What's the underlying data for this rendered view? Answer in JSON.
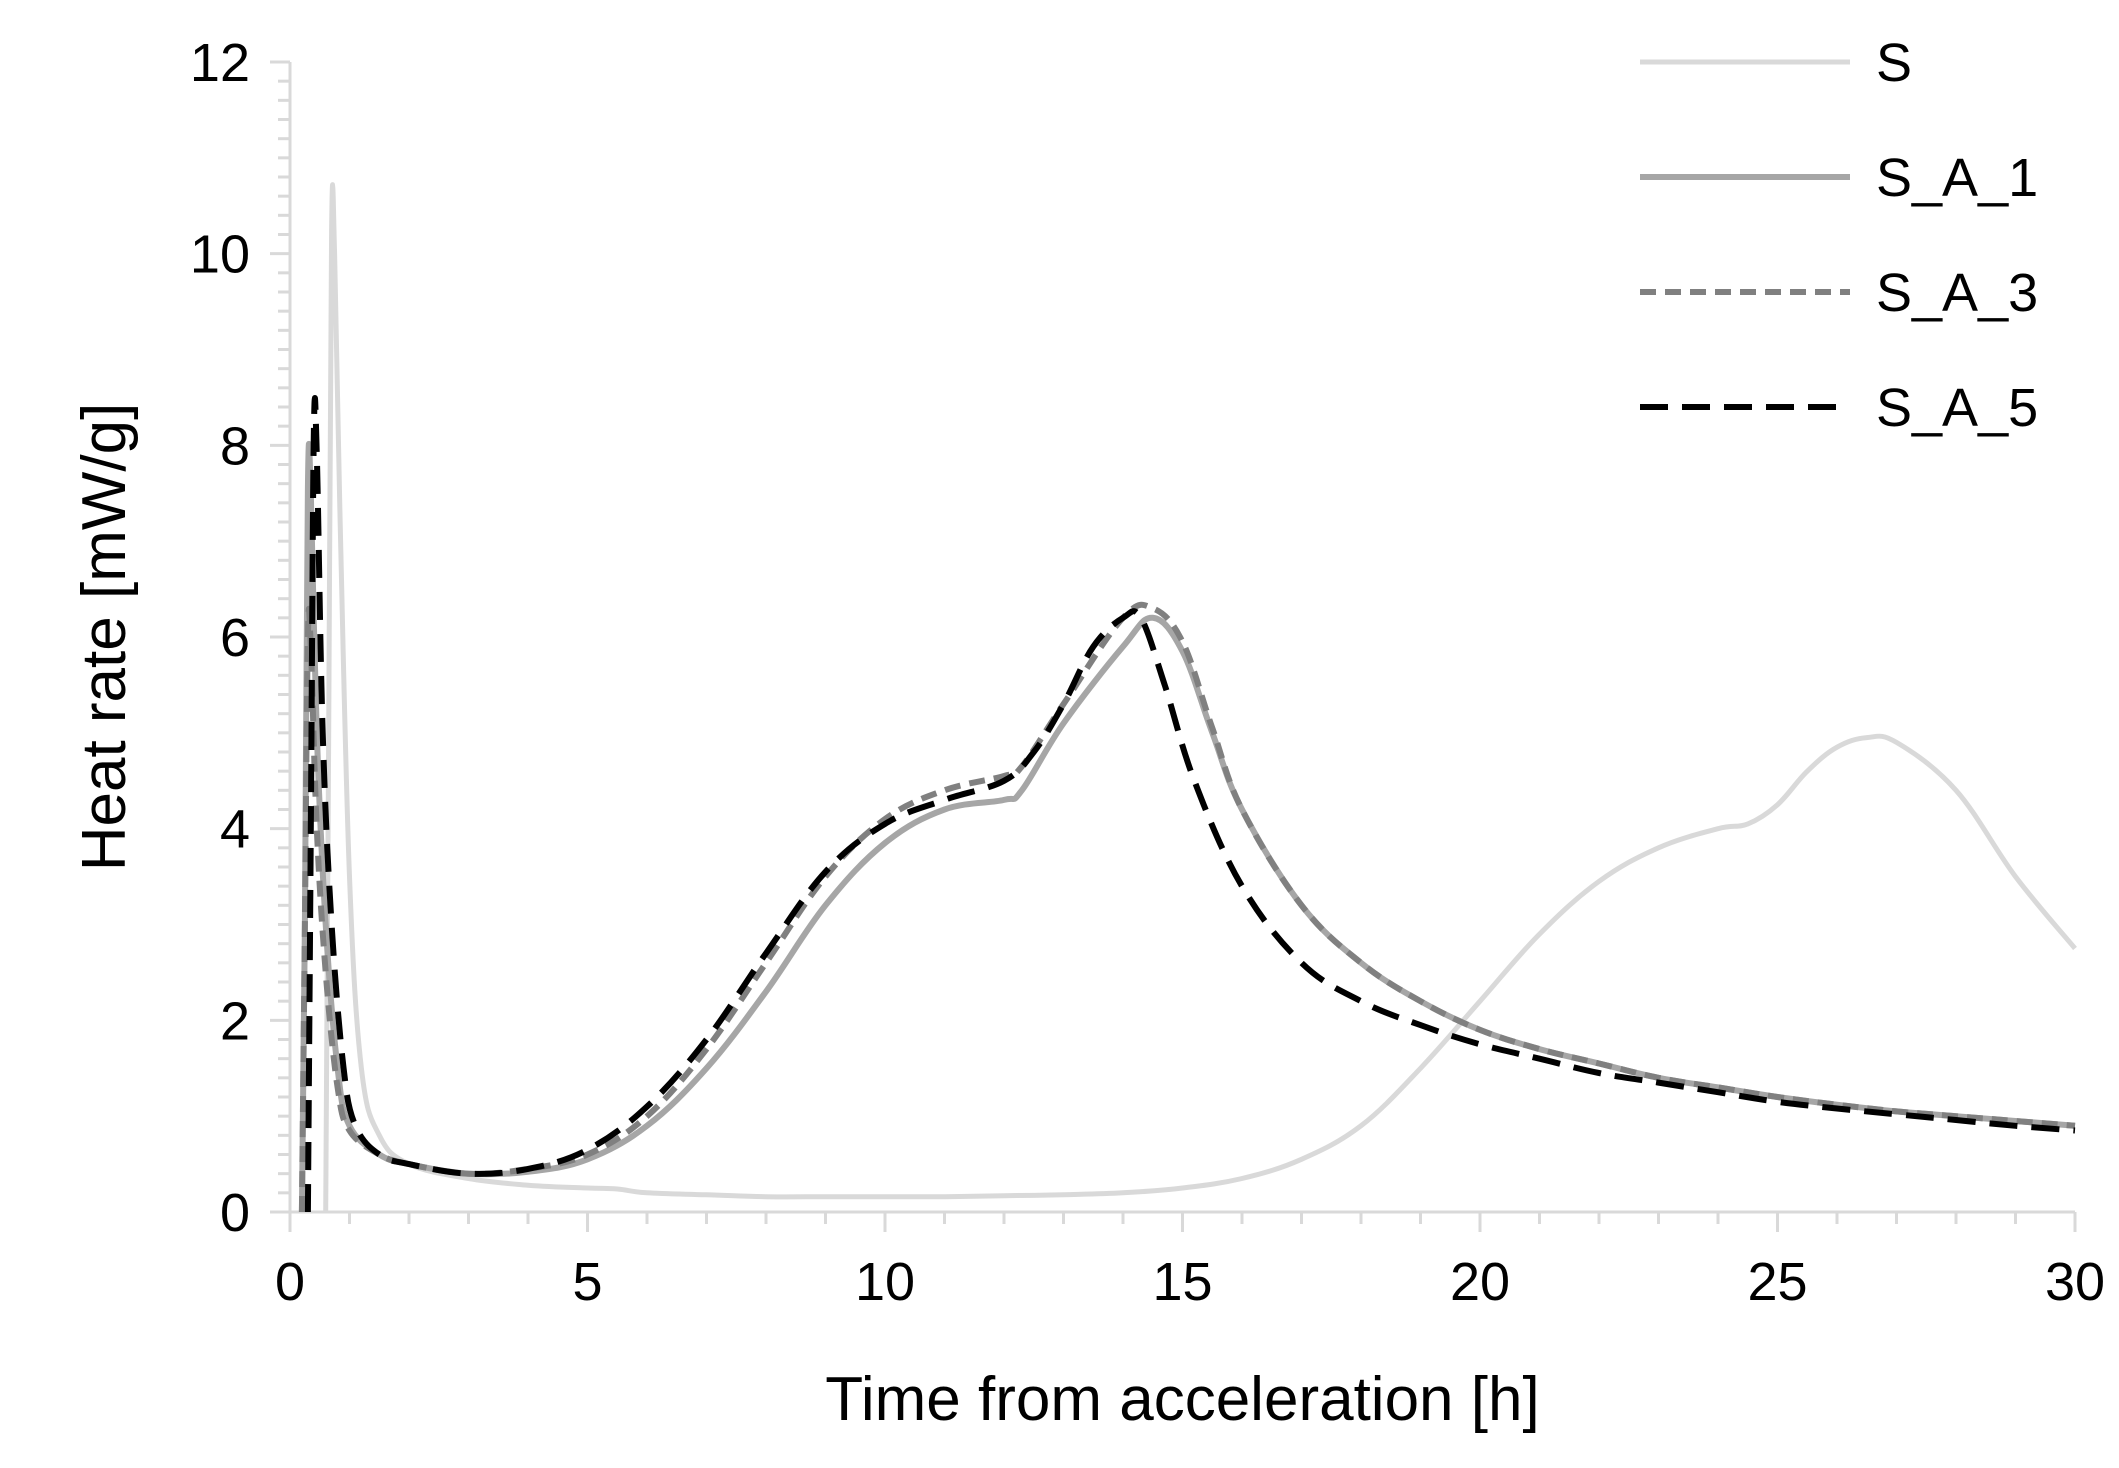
{
  "chart_data": {
    "type": "line",
    "title": "",
    "xlabel": "Time from acceleration [h]",
    "ylabel": "Heat rate [mW/g]",
    "xlim": [
      0,
      30
    ],
    "ylim": [
      0,
      12
    ],
    "xticks": [
      0,
      5,
      10,
      15,
      20,
      25,
      30
    ],
    "xtick_labels": [
      "0",
      "5",
      "10",
      "15",
      "20",
      "25",
      "30"
    ],
    "yticks": [
      0,
      2,
      4,
      6,
      8,
      10,
      12
    ],
    "ytick_labels": [
      "0",
      "2",
      "4",
      "6",
      "8",
      "10",
      "12"
    ],
    "x_minor_step": 1,
    "y_minor_step": 0.2,
    "grid": false,
    "legend_position": "top-right",
    "series": [
      {
        "name": "S",
        "color": "#d9d9d9",
        "dash": "solid",
        "points": [
          [
            0.6,
            0
          ],
          [
            0.65,
            5
          ],
          [
            0.7,
            10.25
          ],
          [
            0.75,
            10
          ],
          [
            0.85,
            7
          ],
          [
            1.0,
            3.5
          ],
          [
            1.2,
            1.5
          ],
          [
            1.5,
            0.8
          ],
          [
            2,
            0.5
          ],
          [
            3,
            0.35
          ],
          [
            4,
            0.28
          ],
          [
            5,
            0.25
          ],
          [
            5.5,
            0.24
          ],
          [
            6,
            0.2
          ],
          [
            7,
            0.18
          ],
          [
            8,
            0.16
          ],
          [
            9,
            0.16
          ],
          [
            10,
            0.16
          ],
          [
            11,
            0.16
          ],
          [
            12,
            0.17
          ],
          [
            13,
            0.18
          ],
          [
            14,
            0.2
          ],
          [
            15,
            0.25
          ],
          [
            16,
            0.35
          ],
          [
            17,
            0.55
          ],
          [
            18,
            0.9
          ],
          [
            19,
            1.5
          ],
          [
            20,
            2.2
          ],
          [
            21,
            2.9
          ],
          [
            22,
            3.45
          ],
          [
            23,
            3.8
          ],
          [
            24,
            4.0
          ],
          [
            24.5,
            4.05
          ],
          [
            25,
            4.25
          ],
          [
            25.5,
            4.6
          ],
          [
            26,
            4.85
          ],
          [
            26.5,
            4.95
          ],
          [
            27,
            4.9
          ],
          [
            28,
            4.4
          ],
          [
            29,
            3.5
          ],
          [
            30,
            2.75
          ]
        ]
      },
      {
        "name": "S_A_1",
        "color": "#a6a6a6",
        "dash": "solid",
        "points": [
          [
            0.2,
            0
          ],
          [
            0.25,
            3
          ],
          [
            0.3,
            7.55
          ],
          [
            0.35,
            7.5
          ],
          [
            0.45,
            5
          ],
          [
            0.6,
            3
          ],
          [
            0.8,
            1.5
          ],
          [
            1,
            0.9
          ],
          [
            1.5,
            0.6
          ],
          [
            2,
            0.5
          ],
          [
            3,
            0.4
          ],
          [
            4,
            0.42
          ],
          [
            5,
            0.55
          ],
          [
            6,
            0.9
          ],
          [
            7,
            1.5
          ],
          [
            8,
            2.3
          ],
          [
            9,
            3.2
          ],
          [
            10,
            3.85
          ],
          [
            11,
            4.2
          ],
          [
            12,
            4.3
          ],
          [
            12.3,
            4.4
          ],
          [
            13,
            5.1
          ],
          [
            14,
            5.9
          ],
          [
            14.5,
            6.2
          ],
          [
            15,
            5.85
          ],
          [
            15.5,
            5.0
          ],
          [
            16,
            4.2
          ],
          [
            17,
            3.2
          ],
          [
            18,
            2.6
          ],
          [
            19,
            2.2
          ],
          [
            20,
            1.9
          ],
          [
            21,
            1.7
          ],
          [
            22,
            1.55
          ],
          [
            23,
            1.4
          ],
          [
            24,
            1.3
          ],
          [
            25,
            1.2
          ],
          [
            26,
            1.12
          ],
          [
            27,
            1.05
          ],
          [
            28,
            1.0
          ],
          [
            29,
            0.95
          ],
          [
            30,
            0.9
          ]
        ]
      },
      {
        "name": "S_A_3",
        "color": "#808080",
        "dash": "short",
        "points": [
          [
            0.2,
            0
          ],
          [
            0.25,
            3
          ],
          [
            0.3,
            6.0
          ],
          [
            0.35,
            5.9
          ],
          [
            0.45,
            4.0
          ],
          [
            0.6,
            2.5
          ],
          [
            0.8,
            1.3
          ],
          [
            1,
            0.85
          ],
          [
            1.5,
            0.6
          ],
          [
            2,
            0.5
          ],
          [
            3,
            0.4
          ],
          [
            4,
            0.45
          ],
          [
            5,
            0.6
          ],
          [
            6,
            1.0
          ],
          [
            7,
            1.7
          ],
          [
            8,
            2.6
          ],
          [
            9,
            3.5
          ],
          [
            10,
            4.1
          ],
          [
            11,
            4.4
          ],
          [
            12,
            4.55
          ],
          [
            12.3,
            4.65
          ],
          [
            13,
            5.3
          ],
          [
            14,
            6.2
          ],
          [
            14.5,
            6.3
          ],
          [
            15,
            5.95
          ],
          [
            15.5,
            5.05
          ],
          [
            16,
            4.2
          ],
          [
            17,
            3.2
          ],
          [
            18,
            2.6
          ],
          [
            19,
            2.2
          ],
          [
            20,
            1.9
          ],
          [
            21,
            1.7
          ],
          [
            22,
            1.55
          ],
          [
            23,
            1.4
          ],
          [
            24,
            1.3
          ],
          [
            25,
            1.2
          ],
          [
            26,
            1.12
          ],
          [
            27,
            1.05
          ],
          [
            28,
            1.0
          ],
          [
            29,
            0.95
          ],
          [
            30,
            0.9
          ]
        ]
      },
      {
        "name": "S_A_5",
        "color": "#000000",
        "dash": "long",
        "points": [
          [
            0.3,
            0
          ],
          [
            0.35,
            4
          ],
          [
            0.4,
            8.1
          ],
          [
            0.45,
            7.9
          ],
          [
            0.55,
            5
          ],
          [
            0.7,
            3
          ],
          [
            0.9,
            1.5
          ],
          [
            1.1,
            0.9
          ],
          [
            1.5,
            0.6
          ],
          [
            2,
            0.5
          ],
          [
            3,
            0.4
          ],
          [
            4,
            0.45
          ],
          [
            5,
            0.65
          ],
          [
            6,
            1.1
          ],
          [
            7,
            1.8
          ],
          [
            8,
            2.7
          ],
          [
            9,
            3.55
          ],
          [
            10,
            4.05
          ],
          [
            11,
            4.3
          ],
          [
            12,
            4.5
          ],
          [
            12.5,
            4.8
          ],
          [
            13,
            5.3
          ],
          [
            13.5,
            5.9
          ],
          [
            14,
            6.2
          ],
          [
            14.3,
            6.2
          ],
          [
            14.7,
            5.5
          ],
          [
            15.2,
            4.5
          ],
          [
            16,
            3.4
          ],
          [
            17,
            2.6
          ],
          [
            18,
            2.2
          ],
          [
            19,
            1.95
          ],
          [
            20,
            1.75
          ],
          [
            21,
            1.6
          ],
          [
            22,
            1.45
          ],
          [
            23,
            1.35
          ],
          [
            24,
            1.25
          ],
          [
            25,
            1.15
          ],
          [
            26,
            1.08
          ],
          [
            27,
            1.02
          ],
          [
            28,
            0.96
          ],
          [
            29,
            0.9
          ],
          [
            30,
            0.85
          ]
        ]
      }
    ]
  }
}
